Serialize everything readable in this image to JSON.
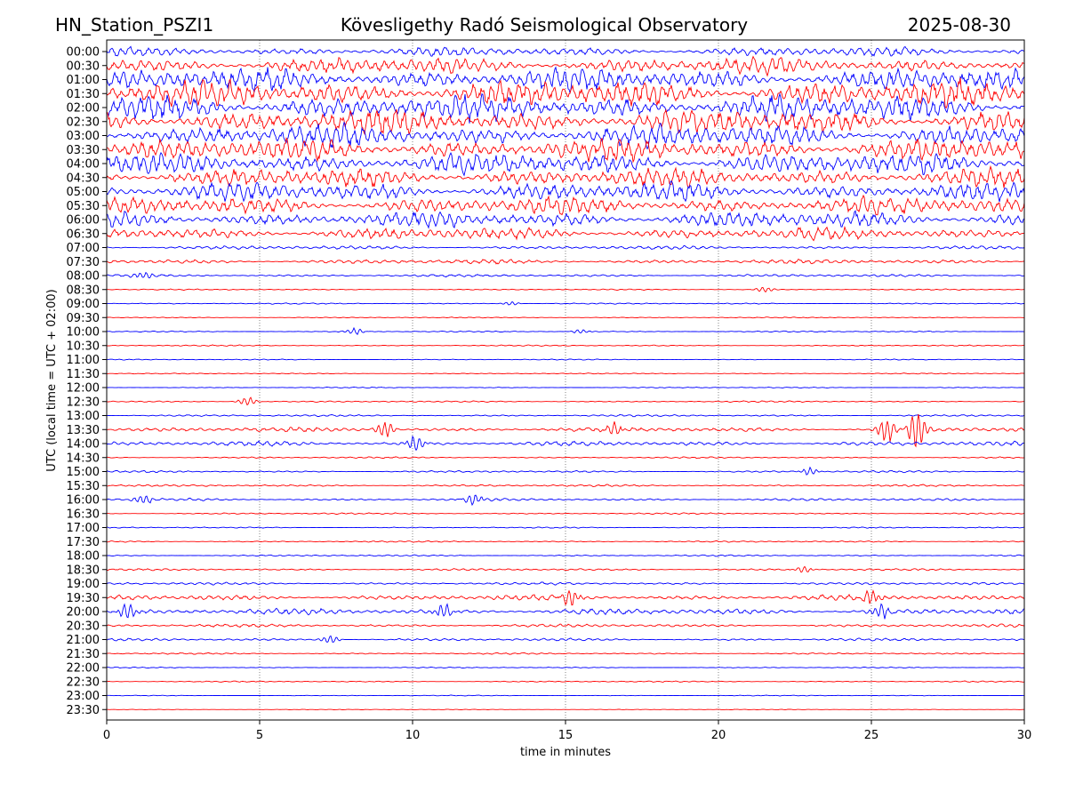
{
  "header": {
    "station": "HN_Station_PSZI1",
    "observatory": "Kövesligethy Radó Seismological Observatory",
    "date": "2025-08-30"
  },
  "chart_data": {
    "type": "line",
    "title": "Kövesligethy Radó Seismological Observatory",
    "xlabel": "time in minutes",
    "ylabel": "UTC (local time = UTC + 02:00)",
    "xlim": [
      0,
      30
    ],
    "x_ticks": [
      "0",
      "5",
      "10",
      "15",
      "20",
      "25",
      "30"
    ],
    "grid": "vertical dotted at x ticks",
    "series_colors": [
      "#0000ff",
      "#ff0000"
    ],
    "rows": [
      "00:00",
      "00:30",
      "01:00",
      "01:30",
      "02:00",
      "02:30",
      "03:00",
      "03:30",
      "04:00",
      "04:30",
      "05:00",
      "05:30",
      "06:00",
      "06:30",
      "07:00",
      "07:30",
      "08:00",
      "08:30",
      "09:00",
      "09:30",
      "10:00",
      "10:30",
      "11:00",
      "11:30",
      "12:00",
      "12:30",
      "13:00",
      "13:30",
      "14:00",
      "14:30",
      "15:00",
      "15:30",
      "16:00",
      "16:30",
      "17:00",
      "17:30",
      "18:00",
      "18:30",
      "19:00",
      "19:30",
      "20:00",
      "20:30",
      "21:00",
      "21:30",
      "22:00",
      "22:30",
      "23:00",
      "23:30"
    ],
    "row_amplitude": [
      0.9,
      1.6,
      2.2,
      2.6,
      2.6,
      2.4,
      2.3,
      2.2,
      2.1,
      1.9,
      1.8,
      1.7,
      1.6,
      1.2,
      0.35,
      0.45,
      0.25,
      0.12,
      0.12,
      0.1,
      0.12,
      0.12,
      0.1,
      0.1,
      0.1,
      0.15,
      0.2,
      0.45,
      0.45,
      0.15,
      0.2,
      0.2,
      0.25,
      0.15,
      0.12,
      0.15,
      0.15,
      0.2,
      0.25,
      0.55,
      0.6,
      0.3,
      0.25,
      0.15,
      0.1,
      0.12,
      0.08,
      0.06
    ],
    "events": [
      {
        "row": "08:00",
        "x": 1.2,
        "amp": 0.6
      },
      {
        "row": "08:30",
        "x": 21.5,
        "amp": 0.4
      },
      {
        "row": "09:00",
        "x": 13.2,
        "amp": 0.3
      },
      {
        "row": "10:00",
        "x": 8.1,
        "amp": 0.5
      },
      {
        "row": "10:00",
        "x": 15.5,
        "amp": 0.3
      },
      {
        "row": "12:30",
        "x": 4.6,
        "amp": 0.7
      },
      {
        "row": "13:30",
        "x": 9.1,
        "amp": 1.2
      },
      {
        "row": "13:30",
        "x": 16.6,
        "amp": 0.9
      },
      {
        "row": "13:30",
        "x": 25.5,
        "amp": 2.0
      },
      {
        "row": "13:30",
        "x": 26.5,
        "amp": 3.0
      },
      {
        "row": "14:00",
        "x": 10.1,
        "amp": 1.2
      },
      {
        "row": "15:00",
        "x": 23.0,
        "amp": 0.6
      },
      {
        "row": "16:00",
        "x": 1.2,
        "amp": 0.8
      },
      {
        "row": "16:00",
        "x": 12.0,
        "amp": 0.9
      },
      {
        "row": "18:30",
        "x": 22.8,
        "amp": 0.5
      },
      {
        "row": "19:30",
        "x": 15.2,
        "amp": 1.1
      },
      {
        "row": "19:30",
        "x": 25.0,
        "amp": 1.0
      },
      {
        "row": "20:00",
        "x": 0.7,
        "amp": 1.4
      },
      {
        "row": "20:00",
        "x": 11.0,
        "amp": 1.1
      },
      {
        "row": "20:00",
        "x": 25.3,
        "amp": 1.1
      },
      {
        "row": "21:00",
        "x": 7.3,
        "amp": 0.6
      }
    ]
  }
}
